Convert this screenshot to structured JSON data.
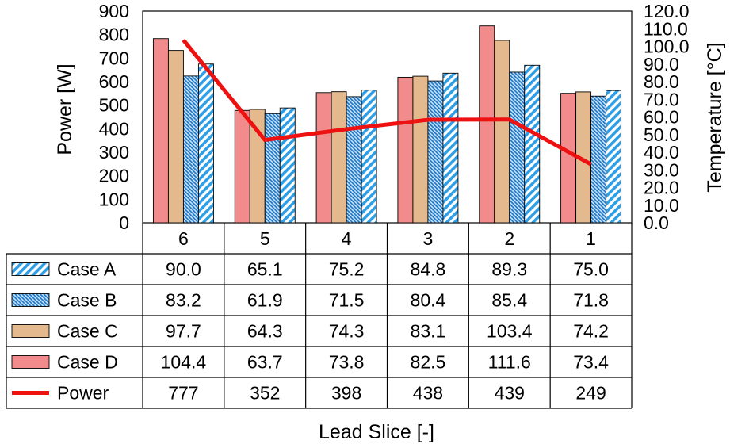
{
  "chart_data": {
    "type": "bar",
    "title": "",
    "xlabel": "Lead Slice [-]",
    "ylabel": "Power [W]",
    "y2label": "Temperature [°C]",
    "categories": [
      "6",
      "5",
      "4",
      "3",
      "2",
      "1"
    ],
    "ylim": [
      0,
      900
    ],
    "y_ticks": [
      "0",
      "100",
      "200",
      "300",
      "400",
      "500",
      "600",
      "700",
      "800",
      "900"
    ],
    "y2lim": [
      0,
      120
    ],
    "y2_ticks": [
      "0.0",
      "10.0",
      "20.0",
      "30.0",
      "40.0",
      "50.0",
      "60.0",
      "70.0",
      "80.0",
      "90.0",
      "100.0",
      "110.0",
      "120.0"
    ],
    "series": [
      {
        "name": "Case D",
        "axis": "temperature",
        "style": "solid",
        "color": "#f28b8b",
        "values": [
          104.4,
          63.7,
          73.8,
          82.5,
          111.6,
          73.4
        ],
        "labels": [
          "104.4",
          "63.7",
          "73.8",
          "82.5",
          "111.6",
          "73.4"
        ]
      },
      {
        "name": "Case C",
        "axis": "temperature",
        "style": "solid",
        "color": "#e5b98e",
        "values": [
          97.7,
          64.3,
          74.3,
          83.1,
          103.4,
          74.2
        ],
        "labels": [
          "97.7",
          "64.3",
          "74.3",
          "83.1",
          "103.4",
          "74.2"
        ]
      },
      {
        "name": "Case B",
        "axis": "temperature",
        "style": "dense-hatch",
        "color": "#2e8fd6",
        "values": [
          83.2,
          61.9,
          71.5,
          80.4,
          85.4,
          71.8
        ],
        "labels": [
          "83.2",
          "61.9",
          "71.5",
          "80.4",
          "85.4",
          "71.8"
        ]
      },
      {
        "name": "Case A",
        "axis": "temperature",
        "style": "diagonal-hatch",
        "color": "#2e9fe6",
        "values": [
          90.0,
          65.1,
          75.2,
          84.8,
          89.3,
          75.0
        ],
        "labels": [
          "90.0",
          "65.1",
          "75.2",
          "84.8",
          "89.3",
          "75.0"
        ]
      },
      {
        "name": "Power",
        "axis": "power",
        "style": "line",
        "color": "#ee1111",
        "values": [
          777,
          352,
          398,
          438,
          439,
          249
        ],
        "labels": [
          "777",
          "352",
          "398",
          "438",
          "439",
          "249"
        ]
      }
    ],
    "table_order": [
      "Case A",
      "Case B",
      "Case C",
      "Case D",
      "Power"
    ]
  }
}
